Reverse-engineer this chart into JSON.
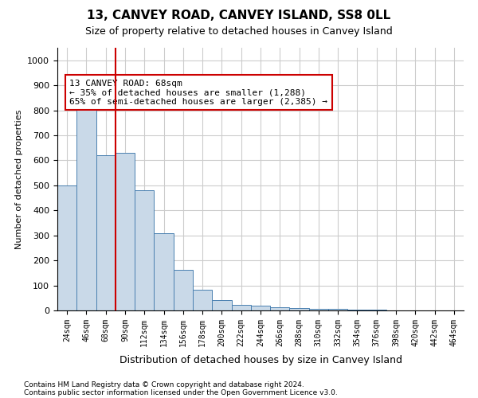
{
  "title": "13, CANVEY ROAD, CANVEY ISLAND, SS8 0LL",
  "subtitle": "Size of property relative to detached houses in Canvey Island",
  "xlabel": "Distribution of detached houses by size in Canvey Island",
  "ylabel": "Number of detached properties",
  "footnote1": "Contains HM Land Registry data © Crown copyright and database right 2024.",
  "footnote2": "Contains public sector information licensed under the Open Government Licence v3.0.",
  "bin_labels": [
    "24sqm",
    "46sqm",
    "68sqm",
    "90sqm",
    "112sqm",
    "134sqm",
    "156sqm",
    "178sqm",
    "200sqm",
    "222sqm",
    "244sqm",
    "266sqm",
    "288sqm",
    "310sqm",
    "332sqm",
    "354sqm",
    "376sqm",
    "398sqm",
    "420sqm",
    "442sqm",
    "464sqm"
  ],
  "bar_values": [
    500,
    810,
    620,
    630,
    480,
    310,
    163,
    82,
    42,
    22,
    20,
    13,
    10,
    7,
    5,
    3,
    2,
    1,
    1,
    1,
    0
  ],
  "bar_color": "#c9d9e8",
  "bar_edge_color": "#4a80b0",
  "vline_x_index": 2,
  "vline_color": "#cc0000",
  "ylim": [
    0,
    1050
  ],
  "yticks": [
    0,
    100,
    200,
    300,
    400,
    500,
    600,
    700,
    800,
    900,
    1000
  ],
  "annotation_text": "13 CANVEY ROAD: 68sqm\n← 35% of detached houses are smaller (1,288)\n65% of semi-detached houses are larger (2,385) →",
  "annotation_box_color": "#ffffff",
  "annotation_box_edge_color": "#cc0000",
  "grid_color": "#cccccc",
  "background_color": "#ffffff"
}
